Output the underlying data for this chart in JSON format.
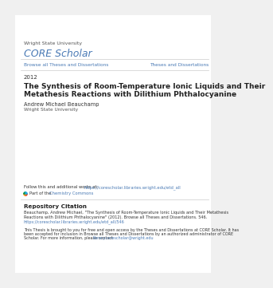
{
  "bg_color": "#f0f0f0",
  "page_bg": "#ffffff",
  "university_text": "Wright State University",
  "core_scholar_text": "CORE Scholar",
  "core_scholar_color": "#4a7ab5",
  "nav_left": "Browse all Theses and Dissertations",
  "nav_right": "Theses and Dissertations",
  "nav_color": "#4a7ab5",
  "year": "2012",
  "title_line1": "The Synthesis of Room-Temperature Ionic Liquids and Their",
  "title_line2": "Metathesis Reactions with Dilithium Phthalocyanine",
  "author_name": "Andrew Michael Beauchamp",
  "author_affil": "Wright State University",
  "follow_prefix": "Follow this and additional works at: ",
  "follow_link": "https://corescholar.libraries.wright.edu/etd_all",
  "part_prefix": "Part of the ",
  "part_link": "Chemistry Commons",
  "part_link_color": "#4a7ab5",
  "repo_citation_title": "Repository Citation",
  "repo_cite_line1": "Beauchamp, Andrew Michael, \"The Synthesis of Room-Temperature Ionic Liquids and Their Metathesis",
  "repo_cite_line2": "Reactions with Dilithium Phthalocyanine\" (2012). Browse all Theses and Dissertations. 546.",
  "repo_cite_line3": "https://corescholar.libraries.wright.edu/etd_all/546",
  "disc_line1": "This Thesis is brought to you for free and open access by the Theses and Dissertations at CORE Scholar. It has",
  "disc_line2": "been accepted for inclusion in Browse all Theses and Dissertations by an authorized administrator of CORE",
  "disc_line3_pre": "Scholar. For more information, please contact ",
  "disc_line3_link": "library.corescholar@wright.edu",
  "disc_line3_post": ".",
  "line_color": "#cccccc",
  "text_dark": "#222222",
  "text_gray": "#555555",
  "text_body": "#333333"
}
